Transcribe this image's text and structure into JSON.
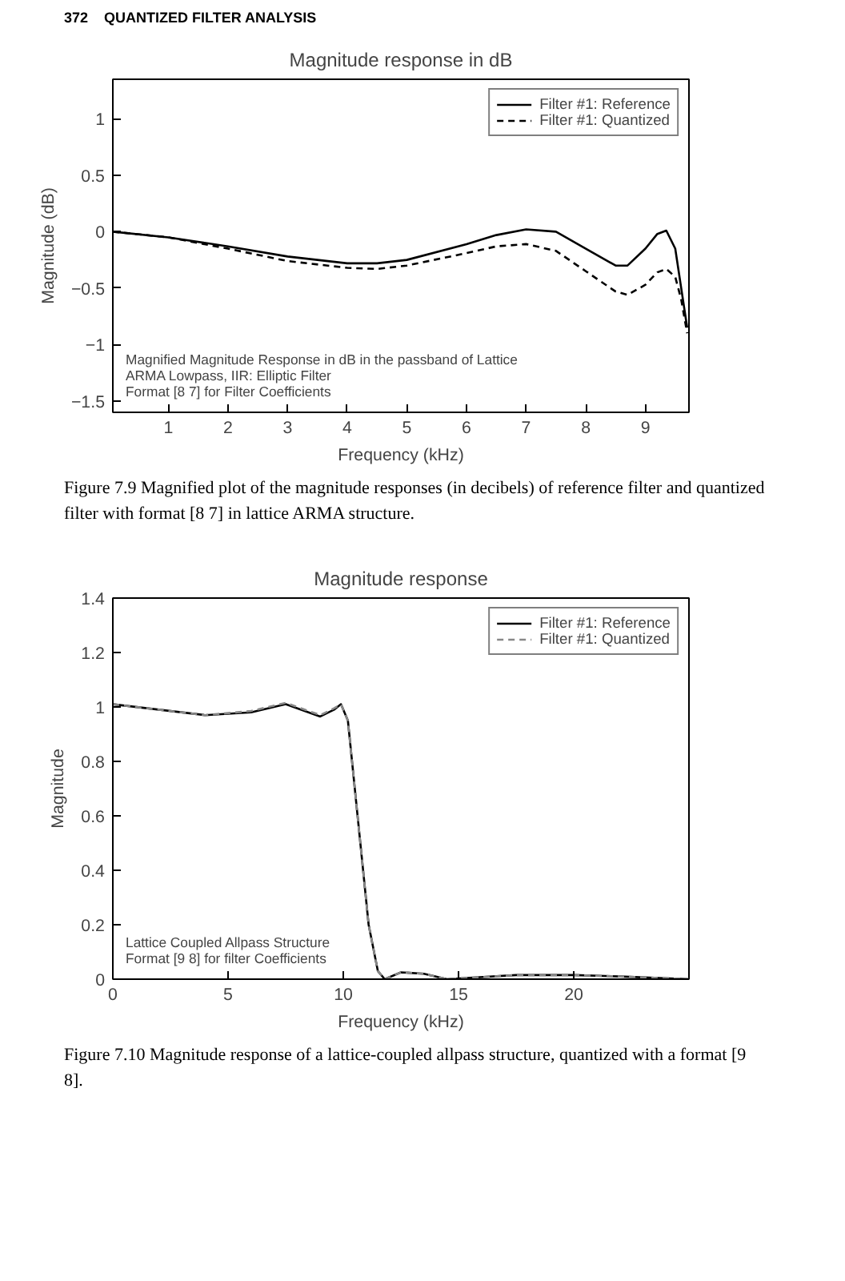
{
  "chart_data": [
    {
      "type": "line",
      "title": "Magnitude response in dB",
      "xlabel": "Frequency (kHz)",
      "ylabel": "Magnitude (dB)",
      "xlim": [
        0.07,
        9.73
      ],
      "xticks": [
        1,
        2,
        3,
        4,
        5,
        6,
        7,
        8,
        9
      ],
      "ylim": [
        -1.6,
        1.35
      ],
      "yticks": [
        -1.5,
        -1,
        -0.5,
        0,
        0.5,
        1
      ],
      "grid": false,
      "legend": "top right",
      "series": [
        {
          "name": "Filter #1: Reference",
          "color": "#000000",
          "line_style": "solid",
          "x": [
            0.07,
            1,
            2,
            3,
            4,
            4.5,
            5,
            6,
            6.5,
            7,
            7.5,
            8,
            8.5,
            8.7,
            9,
            9.2,
            9.35,
            9.5,
            9.6,
            9.7
          ],
          "values": [
            0,
            -0.05,
            -0.13,
            -0.22,
            -0.28,
            -0.28,
            -0.25,
            -0.11,
            -0.03,
            0.02,
            0,
            -0.15,
            -0.3,
            -0.3,
            -0.15,
            -0.02,
            0.01,
            -0.15,
            -0.5,
            -0.85
          ]
        },
        {
          "name": "Filter #1: Quantized",
          "color": "#000000",
          "line_style": "dashed",
          "x": [
            0.07,
            1,
            2,
            3,
            4,
            4.5,
            5,
            6,
            6.5,
            7,
            7.5,
            8,
            8.5,
            8.7,
            9,
            9.2,
            9.35,
            9.5,
            9.6,
            9.7
          ],
          "values": [
            0,
            -0.05,
            -0.15,
            -0.26,
            -0.32,
            -0.33,
            -0.3,
            -0.19,
            -0.13,
            -0.11,
            -0.17,
            -0.35,
            -0.53,
            -0.56,
            -0.47,
            -0.36,
            -0.33,
            -0.4,
            -0.6,
            -0.9
          ]
        }
      ],
      "annotations": [
        "372    QUANTIZED FILTER ANALYSIS",
        "Magnified Magnitude Response in dB in the passband of Lattice\nARMA Lowpass, IIR: Elliptic Filter\nFormat [8 7] for Filter Coefficients",
        "Figure 7.9   Magnified plot of the magnitude responses (in decibels) of reference filter and quantized filter with format [8   7] in lattice ARMA structure."
      ]
    },
    {
      "type": "line",
      "title": "Magnitude response",
      "xlabel": "Frequency (kHz)",
      "ylabel": "Magnitude",
      "xlim": [
        0,
        25
      ],
      "xticks": [
        0,
        5,
        10,
        15,
        20
      ],
      "ylim": [
        0,
        1.4
      ],
      "yticks": [
        0,
        0.2,
        0.4,
        0.6,
        0.8,
        1,
        1.2,
        1.4
      ],
      "grid": false,
      "legend": "top right",
      "series": [
        {
          "name": "Filter #1: Reference",
          "color": "#000000",
          "line_style": "solid",
          "x": [
            0,
            2,
            4,
            6,
            7.5,
            9,
            9.6,
            9.9,
            10.2,
            10.5,
            10.8,
            11.1,
            11.5,
            11.8,
            12.5,
            13.5,
            14.5,
            15.5,
            17.5,
            20,
            22,
            25
          ],
          "values": [
            1.01,
            0.99,
            0.97,
            0.98,
            1.01,
            0.965,
            0.99,
            1.01,
            0.95,
            0.7,
            0.45,
            0.2,
            0.03,
            0,
            0.025,
            0.02,
            0,
            0.005,
            0.015,
            0.015,
            0.01,
            0
          ]
        },
        {
          "name": "Filter #1: Quantized",
          "color": "#888888",
          "line_style": "dashed",
          "x": [
            0,
            2,
            4,
            6,
            7.5,
            9,
            9.6,
            9.9,
            10.2,
            10.5,
            10.8,
            11.1,
            11.5,
            11.8,
            12.5,
            13.5,
            14.5,
            15.5,
            17.5,
            20,
            22,
            25
          ],
          "values": [
            1.01,
            0.99,
            0.97,
            0.985,
            1.015,
            0.97,
            0.995,
            1.01,
            0.95,
            0.7,
            0.45,
            0.2,
            0.03,
            0,
            0.025,
            0.02,
            0,
            0.005,
            0.015,
            0.015,
            0.01,
            0
          ]
        }
      ],
      "annotations": [
        "Lattice Coupled Allpass Structure\nFormat [9 8] for filter Coefficients",
        "Figure 7.10   Magnitude response of a lattice-coupled allpass structure, quantized with a format [9   8]."
      ]
    }
  ]
}
